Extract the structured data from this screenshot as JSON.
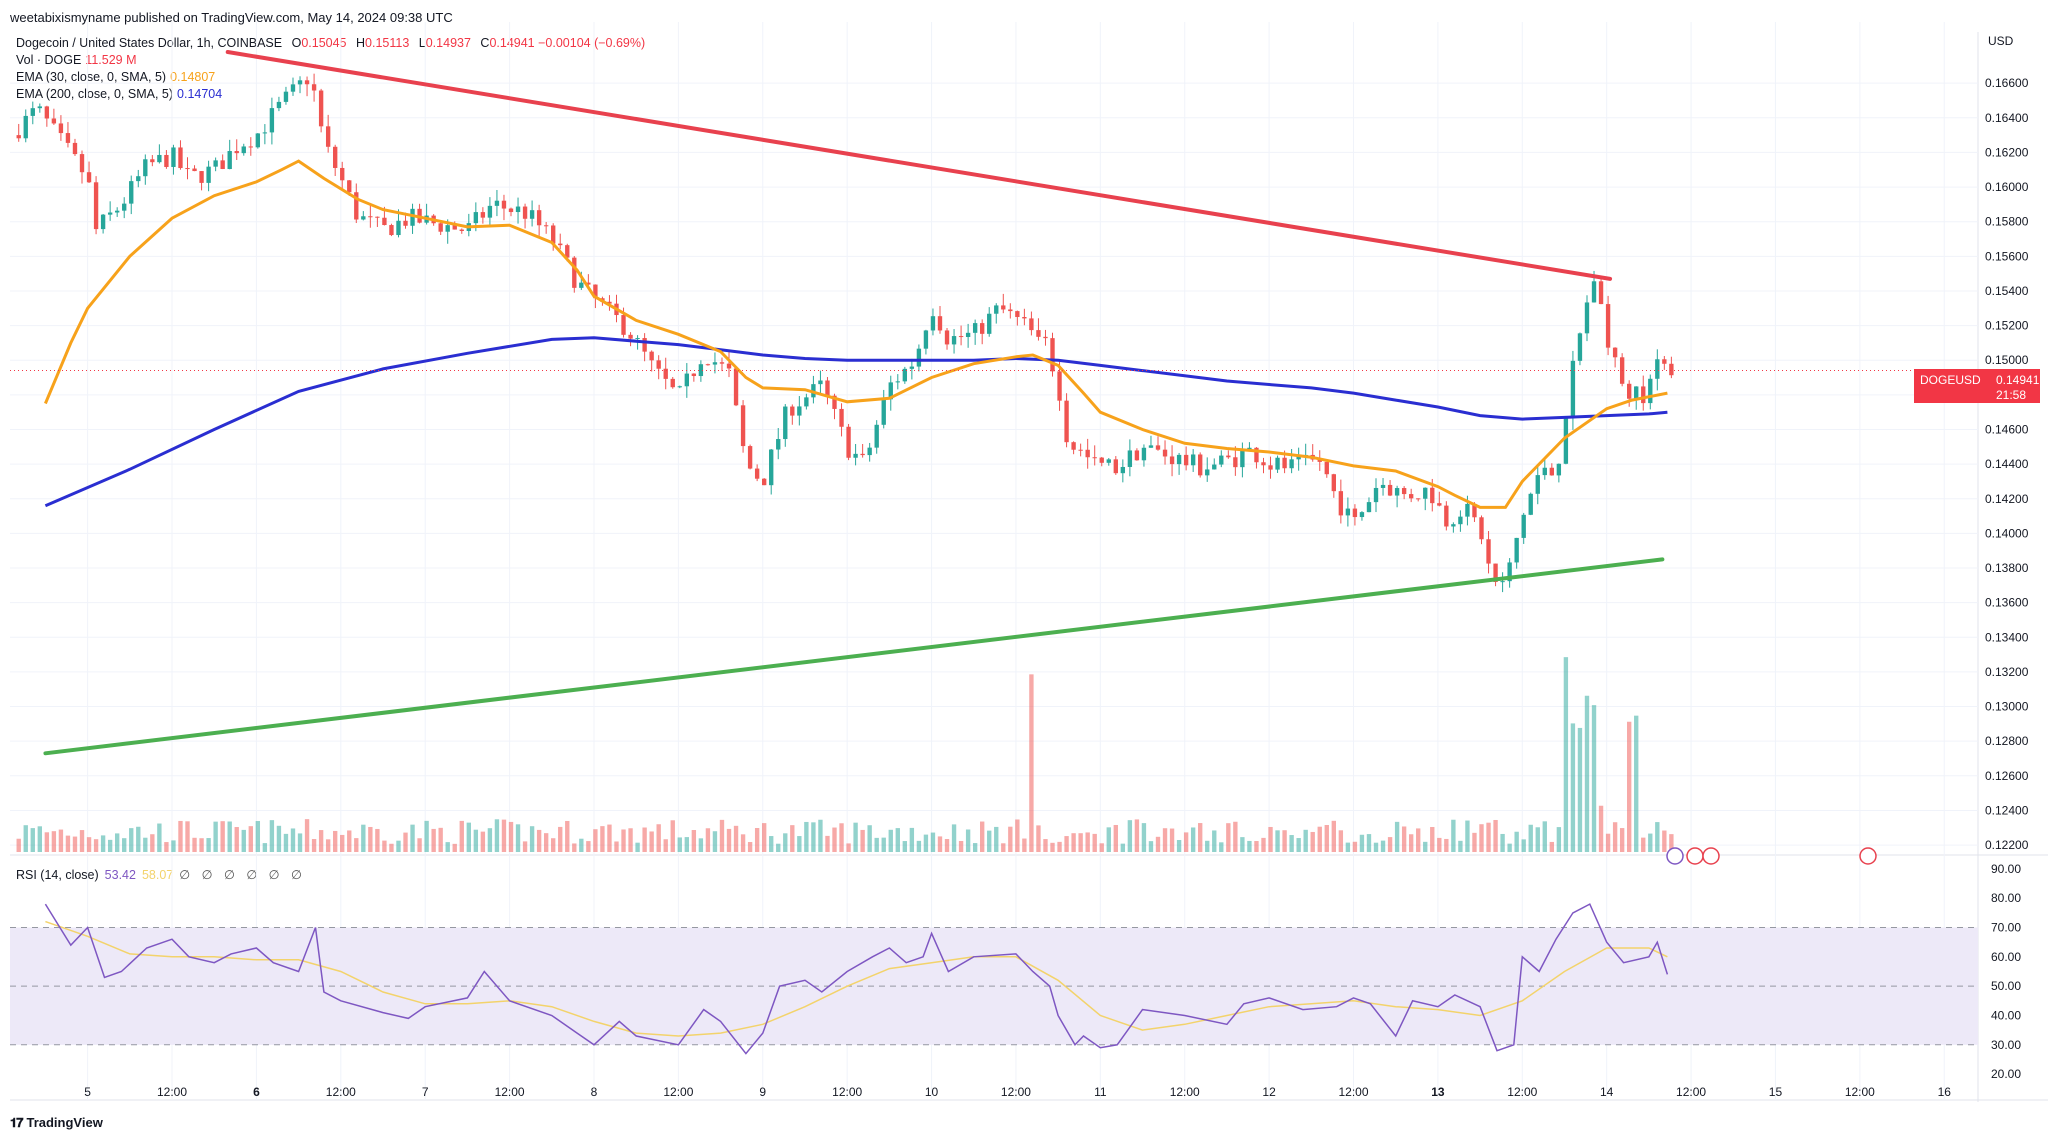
{
  "attribution": "weetabixismyname published on TradingView.com, May 14, 2024 09:38 UTC",
  "legend": {
    "title": "Dogecoin / United States Dollar, 1h, COINBASE",
    "ohlc": {
      "o_label": "O",
      "o": "0.15045",
      "h_label": "H",
      "h": "0.15113",
      "l_label": "L",
      "l": "0.14937",
      "c_label": "C",
      "c": "0.14941",
      "change": "−0.00104 (−0.69%)"
    },
    "volume": {
      "label": "Vol · DOGE",
      "value": "11.529 M"
    },
    "ema30": {
      "label": "EMA (30, close, 0, SMA, 5)",
      "value": "0.14807"
    },
    "ema200": {
      "label": "EMA (200, close, 0, SMA, 5)",
      "value": "0.14704"
    }
  },
  "rsi_legend": {
    "label": "RSI (14, close)",
    "value": "53.42",
    "value2": "58.07",
    "glyphs": "∅ ∅ ∅ ∅ ∅ ∅"
  },
  "currency": "USD",
  "price_tag": {
    "symbol": "DOGEUSD",
    "price": "0.14941",
    "countdown": "21:58"
  },
  "footer_logo": "TradingView",
  "colors": {
    "up": "#26a69a",
    "down": "#ef5350",
    "ema30": "#f7a21b",
    "ema200": "#2a2ed1",
    "resistance": "#e8414e",
    "support": "#4caf50",
    "rsi": "#7e57c2",
    "rsi_ma": "#f3d36b",
    "rsi_band": "#ede9f8"
  },
  "chart_data": {
    "type": "candlestick",
    "price_axis": {
      "labels": [
        "0.16600",
        "0.16400",
        "0.16200",
        "0.16000",
        "0.15800",
        "0.15600",
        "0.15400",
        "0.15200",
        "0.15000",
        "0.14800",
        "0.14600",
        "0.14400",
        "0.14200",
        "0.14000",
        "0.13800",
        "0.13600",
        "0.13400",
        "0.13200",
        "0.13000",
        "0.12800",
        "0.12600",
        "0.12400",
        "0.12200"
      ],
      "range": [
        0.1216,
        0.1678
      ]
    },
    "rsi_axis": {
      "labels": [
        "90.00",
        "80.00",
        "70.00",
        "60.00",
        "50.00",
        "40.00",
        "30.00",
        "20.00"
      ],
      "range": [
        18,
        92
      ],
      "bands": [
        70,
        50,
        30
      ]
    },
    "time_axis": {
      "labels": [
        "5",
        "12:00",
        "6",
        "12:00",
        "7",
        "12:00",
        "8",
        "12:00",
        "9",
        "12:00",
        "10",
        "12:00",
        "11",
        "12:00",
        "12",
        "12:00",
        "13",
        "12:00",
        "14",
        "12:00",
        "15",
        "12:00",
        "16"
      ],
      "bold": [
        "6",
        "13"
      ],
      "ticks": [
        5,
        5.5,
        6,
        6.5,
        7,
        7.5,
        8,
        8.5,
        9,
        9.5,
        10,
        10.5,
        11,
        11.5,
        12,
        12.5,
        13,
        13.5,
        14,
        14.5,
        15,
        15.5,
        16
      ]
    },
    "last_price": 0.14941,
    "resistance_line": [
      {
        "t": 5.83,
        "p": 0.1678
      },
      {
        "t": 14.02,
        "p": 0.1547
      }
    ],
    "support_line": [
      {
        "t": 4.75,
        "p": 0.1273
      },
      {
        "t": 14.33,
        "p": 0.1385
      }
    ],
    "ema200_points": [
      [
        4.75,
        0.1416
      ],
      [
        5.25,
        0.1437
      ],
      [
        5.75,
        0.146
      ],
      [
        6.25,
        0.1482
      ],
      [
        6.75,
        0.1495
      ],
      [
        7.25,
        0.1504
      ],
      [
        7.75,
        0.1512
      ],
      [
        8.0,
        0.1513
      ],
      [
        8.25,
        0.1511
      ],
      [
        8.5,
        0.1509
      ],
      [
        8.75,
        0.1506
      ],
      [
        9.0,
        0.1503
      ],
      [
        9.25,
        0.1501
      ],
      [
        9.5,
        0.15
      ],
      [
        9.75,
        0.15
      ],
      [
        10.0,
        0.15
      ],
      [
        10.25,
        0.15
      ],
      [
        10.5,
        0.1501
      ],
      [
        10.75,
        0.15
      ],
      [
        11.0,
        0.1497
      ],
      [
        11.25,
        0.1494
      ],
      [
        11.5,
        0.1491
      ],
      [
        11.75,
        0.1488
      ],
      [
        12.0,
        0.1486
      ],
      [
        12.25,
        0.1484
      ],
      [
        12.5,
        0.1481
      ],
      [
        12.75,
        0.1477
      ],
      [
        13.0,
        0.1473
      ],
      [
        13.25,
        0.1468
      ],
      [
        13.5,
        0.1466
      ],
      [
        13.75,
        0.1467
      ],
      [
        14.0,
        0.1468
      ],
      [
        14.25,
        0.1469
      ],
      [
        14.36,
        0.147
      ]
    ],
    "ema30_points": [
      [
        4.75,
        0.1475
      ],
      [
        4.9,
        0.151
      ],
      [
        5.0,
        0.153
      ],
      [
        5.25,
        0.156
      ],
      [
        5.5,
        0.1582
      ],
      [
        5.75,
        0.1595
      ],
      [
        6.0,
        0.1603
      ],
      [
        6.15,
        0.161
      ],
      [
        6.25,
        0.1615
      ],
      [
        6.4,
        0.1605
      ],
      [
        6.6,
        0.1593
      ],
      [
        6.75,
        0.1587
      ],
      [
        7.0,
        0.1582
      ],
      [
        7.25,
        0.1577
      ],
      [
        7.5,
        0.1578
      ],
      [
        7.75,
        0.1568
      ],
      [
        7.9,
        0.1552
      ],
      [
        8.0,
        0.1537
      ],
      [
        8.25,
        0.1523
      ],
      [
        8.5,
        0.1515
      ],
      [
        8.75,
        0.1505
      ],
      [
        8.9,
        0.149
      ],
      [
        9.0,
        0.1484
      ],
      [
        9.25,
        0.1483
      ],
      [
        9.5,
        0.1476
      ],
      [
        9.75,
        0.1478
      ],
      [
        10.0,
        0.149
      ],
      [
        10.25,
        0.1498
      ],
      [
        10.5,
        0.1502
      ],
      [
        10.6,
        0.1503
      ],
      [
        10.75,
        0.1497
      ],
      [
        10.9,
        0.1481
      ],
      [
        11.0,
        0.147
      ],
      [
        11.25,
        0.146
      ],
      [
        11.5,
        0.1452
      ],
      [
        11.75,
        0.1449
      ],
      [
        12.0,
        0.1447
      ],
      [
        12.25,
        0.1444
      ],
      [
        12.5,
        0.1439
      ],
      [
        12.75,
        0.1436
      ],
      [
        13.0,
        0.1427
      ],
      [
        13.1,
        0.1422
      ],
      [
        13.25,
        0.1415
      ],
      [
        13.4,
        0.1415
      ],
      [
        13.5,
        0.143
      ],
      [
        13.75,
        0.1455
      ],
      [
        14.0,
        0.1472
      ],
      [
        14.15,
        0.1477
      ],
      [
        14.36,
        0.1481
      ]
    ],
    "rsi_points": [
      [
        4.75,
        78
      ],
      [
        4.9,
        64
      ],
      [
        5.0,
        70
      ],
      [
        5.1,
        53
      ],
      [
        5.2,
        55
      ],
      [
        5.35,
        63
      ],
      [
        5.5,
        66
      ],
      [
        5.6,
        60
      ],
      [
        5.75,
        58
      ],
      [
        5.85,
        61
      ],
      [
        6.0,
        63
      ],
      [
        6.1,
        58
      ],
      [
        6.25,
        55
      ],
      [
        6.35,
        70
      ],
      [
        6.4,
        48
      ],
      [
        6.5,
        45
      ],
      [
        6.75,
        41
      ],
      [
        6.9,
        39
      ],
      [
        7.0,
        43
      ],
      [
        7.25,
        46
      ],
      [
        7.35,
        55
      ],
      [
        7.5,
        45
      ],
      [
        7.75,
        40
      ],
      [
        7.9,
        34
      ],
      [
        8.0,
        30
      ],
      [
        8.15,
        38
      ],
      [
        8.25,
        33
      ],
      [
        8.5,
        30
      ],
      [
        8.65,
        42
      ],
      [
        8.75,
        38
      ],
      [
        8.9,
        27
      ],
      [
        9.0,
        34
      ],
      [
        9.1,
        50
      ],
      [
        9.25,
        52
      ],
      [
        9.35,
        48
      ],
      [
        9.5,
        55
      ],
      [
        9.65,
        60
      ],
      [
        9.75,
        63
      ],
      [
        9.85,
        58
      ],
      [
        9.95,
        60
      ],
      [
        10.0,
        68
      ],
      [
        10.1,
        55
      ],
      [
        10.25,
        60
      ],
      [
        10.5,
        61
      ],
      [
        10.6,
        55
      ],
      [
        10.7,
        50
      ],
      [
        10.75,
        40
      ],
      [
        10.85,
        30
      ],
      [
        10.9,
        33
      ],
      [
        11.0,
        29
      ],
      [
        11.1,
        30
      ],
      [
        11.25,
        42
      ],
      [
        11.5,
        40
      ],
      [
        11.75,
        37
      ],
      [
        11.85,
        44
      ],
      [
        12.0,
        46
      ],
      [
        12.2,
        42
      ],
      [
        12.4,
        43
      ],
      [
        12.5,
        46
      ],
      [
        12.6,
        44
      ],
      [
        12.75,
        33
      ],
      [
        12.85,
        45
      ],
      [
        13.0,
        43
      ],
      [
        13.1,
        47
      ],
      [
        13.25,
        43
      ],
      [
        13.35,
        28
      ],
      [
        13.45,
        30
      ],
      [
        13.5,
        60
      ],
      [
        13.6,
        55
      ],
      [
        13.7,
        66
      ],
      [
        13.8,
        75
      ],
      [
        13.9,
        78
      ],
      [
        14.0,
        65
      ],
      [
        14.1,
        58
      ],
      [
        14.25,
        60
      ],
      [
        14.3,
        65
      ],
      [
        14.36,
        54
      ]
    ],
    "rsi_ma_points": [
      [
        4.75,
        72
      ],
      [
        5.0,
        67
      ],
      [
        5.25,
        61
      ],
      [
        5.5,
        60
      ],
      [
        5.75,
        60
      ],
      [
        6.0,
        59
      ],
      [
        6.25,
        59
      ],
      [
        6.5,
        55
      ],
      [
        6.75,
        48
      ],
      [
        7.0,
        44
      ],
      [
        7.25,
        44
      ],
      [
        7.5,
        45
      ],
      [
        7.75,
        43
      ],
      [
        8.0,
        38
      ],
      [
        8.25,
        34
      ],
      [
        8.5,
        33
      ],
      [
        8.75,
        34
      ],
      [
        9.0,
        37
      ],
      [
        9.25,
        43
      ],
      [
        9.5,
        50
      ],
      [
        9.75,
        56
      ],
      [
        10.0,
        58
      ],
      [
        10.25,
        60
      ],
      [
        10.5,
        60
      ],
      [
        10.75,
        52
      ],
      [
        11.0,
        40
      ],
      [
        11.25,
        35
      ],
      [
        11.5,
        37
      ],
      [
        11.75,
        40
      ],
      [
        12.0,
        43
      ],
      [
        12.25,
        44
      ],
      [
        12.5,
        45
      ],
      [
        12.75,
        43
      ],
      [
        13.0,
        42
      ],
      [
        13.25,
        40
      ],
      [
        13.5,
        45
      ],
      [
        13.75,
        55
      ],
      [
        14.0,
        63
      ],
      [
        14.25,
        63
      ],
      [
        14.36,
        60
      ]
    ]
  }
}
